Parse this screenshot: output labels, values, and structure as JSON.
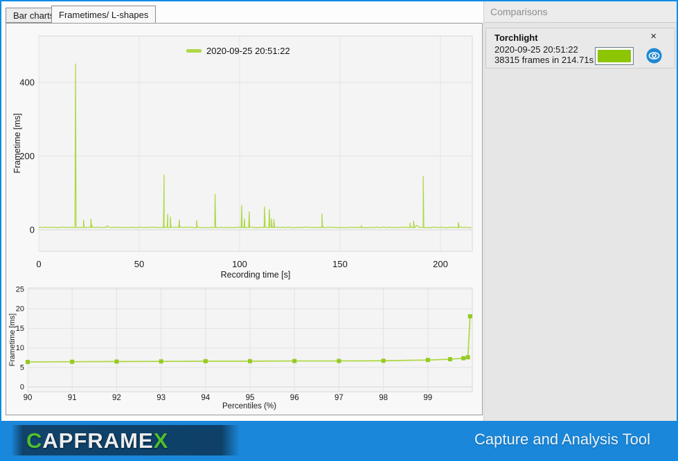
{
  "tabs": [
    {
      "label": "Bar charts",
      "active": false
    },
    {
      "label": "Frametimes/ L-shapes",
      "active": true
    }
  ],
  "sidebar": {
    "title": "Comparisons",
    "card": {
      "title": "Torchlight",
      "date": "2020-09-25 20:51:22",
      "frames": "38315 frames in 214.71s",
      "swatch_color": "#8cc502",
      "close_icon": "×"
    }
  },
  "footer": {
    "logo_c": "C",
    "logo_mid": "APFRAME",
    "logo_x": "X",
    "tagline": "Capture and Analysis Tool"
  },
  "colors": {
    "window_blue": "#0d8ce8",
    "footer_blue": "#1b87da",
    "line_green": "#b0d848",
    "marker_green": "#94ca20"
  },
  "chart_data": [
    {
      "type": "line",
      "title": "",
      "legend": [
        "2020-09-25 20:51:22"
      ],
      "legend_position": "top-center",
      "xlabel": "Recording time [s]",
      "ylabel": "Frametime [ms]",
      "xlim": [
        0,
        216
      ],
      "ylim": [
        0,
        500
      ],
      "xticks": [
        0,
        50,
        100,
        150,
        200
      ],
      "yticks": [
        0,
        200,
        400
      ],
      "grid": true,
      "line_color": "#b0d848",
      "baseline_ms": 6.5,
      "baseline_noise_ms": 1.8,
      "spikes_t_ms": [
        [
          18.3,
          450
        ],
        [
          22.3,
          26
        ],
        [
          26.0,
          29
        ],
        [
          62.4,
          149
        ],
        [
          64.2,
          42
        ],
        [
          65.5,
          35
        ],
        [
          70.0,
          26
        ],
        [
          78.6,
          25
        ],
        [
          87.8,
          96
        ],
        [
          101.0,
          66
        ],
        [
          102.5,
          30
        ],
        [
          104.8,
          49
        ],
        [
          112.4,
          62
        ],
        [
          114.8,
          55
        ],
        [
          115.9,
          30
        ],
        [
          117.1,
          28
        ],
        [
          141.0,
          43
        ],
        [
          160.7,
          11
        ],
        [
          184.8,
          18
        ],
        [
          186.6,
          24
        ],
        [
          191.4,
          145
        ],
        [
          209.0,
          20
        ]
      ]
    },
    {
      "type": "line",
      "title": "",
      "xlabel": "Percentiles (%)",
      "ylabel": "Frametime [ms]",
      "xlim": [
        90,
        100
      ],
      "ylim": [
        0,
        25
      ],
      "xticks": [
        90,
        91,
        92,
        93,
        94,
        95,
        96,
        97,
        98,
        99
      ],
      "yticks": [
        0,
        5,
        10,
        15,
        20,
        25
      ],
      "grid": true,
      "marker": "square",
      "line_color": "#b0d848",
      "marker_color": "#94ca20",
      "x": [
        90,
        91,
        92,
        93,
        94,
        95,
        96,
        97,
        98,
        99,
        99.5,
        99.8,
        99.9,
        99.95
      ],
      "y": [
        6.4,
        6.45,
        6.5,
        6.55,
        6.6,
        6.6,
        6.65,
        6.65,
        6.7,
        6.9,
        7.1,
        7.35,
        7.6,
        18.1
      ]
    }
  ]
}
